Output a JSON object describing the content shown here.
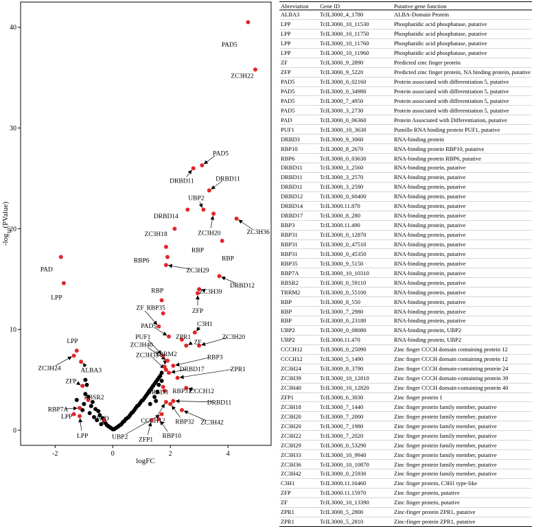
{
  "chart_data": {
    "type": "scatter",
    "title": "",
    "xlabel": "logFC",
    "ylabel": "-log10(PValue)",
    "xlim": [
      -3.2,
      5.5
    ],
    "ylim": [
      -1.5,
      42.5
    ],
    "xticks": [
      -2,
      0,
      2,
      4
    ],
    "yticks": [
      0,
      10,
      20,
      30,
      40
    ],
    "colors": {
      "significant": "#e3262a",
      "nonsignificant": "#000000"
    },
    "significant": [
      {
        "x": 4.7,
        "y": 40.5,
        "label": "PAD5",
        "lx": 4.05,
        "ly": 38.3,
        "arrow": false
      },
      {
        "x": 4.95,
        "y": 35.8,
        "label": "ZC3H22",
        "lx": 4.5,
        "ly": 35.2,
        "arrow": false
      },
      {
        "x": 3.1,
        "y": 26.3,
        "label": "PAD5",
        "lx": 3.75,
        "ly": 27.5,
        "arrow": true
      },
      {
        "x": 2.8,
        "y": 26.0,
        "label": "DRBD11",
        "lx": 2.4,
        "ly": 24.8,
        "arrow": true
      },
      {
        "x": 3.35,
        "y": 23.8,
        "label": "DRBD11",
        "lx": 4.0,
        "ly": 25.0,
        "arrow": true
      },
      {
        "x": 3.15,
        "y": 21.9,
        "label": "UBP2",
        "lx": 2.9,
        "ly": 23.1,
        "arrow": true
      },
      {
        "x": 2.6,
        "y": 21.9,
        "label": "DRBD14",
        "lx": 1.85,
        "ly": 21.3,
        "arrow": false
      },
      {
        "x": 3.5,
        "y": 21.5,
        "label": "ZC3H20",
        "lx": 3.35,
        "ly": 19.6,
        "arrow": true
      },
      {
        "x": 4.3,
        "y": 21.0,
        "label": "ZC3H36",
        "lx": 5.05,
        "ly": 19.7,
        "arrow": true
      },
      {
        "x": 2.15,
        "y": 20.0,
        "label": "ZC3H18",
        "lx": 1.5,
        "ly": 19.5,
        "arrow": false
      },
      {
        "x": 1.85,
        "y": 18.2,
        "label": "RBP",
        "lx": 2.95,
        "ly": 17.9,
        "arrow": false
      },
      {
        "x": 3.8,
        "y": 18.8,
        "label": "RBP",
        "lx": 4.0,
        "ly": 17.1,
        "arrow": false
      },
      {
        "x": 1.9,
        "y": 17.2,
        "label": "RBP6",
        "lx": 1.0,
        "ly": 16.9,
        "arrow": false
      },
      {
        "x": 1.85,
        "y": 16.4,
        "label": "ZC3H29",
        "lx": 2.95,
        "ly": 15.9,
        "arrow": true
      },
      {
        "x": 3.7,
        "y": 15.3,
        "label": "DRBD12",
        "lx": 4.5,
        "ly": 14.4,
        "arrow": true
      },
      {
        "x": 3.0,
        "y": 14.0,
        "label": "ZC3H39",
        "lx": 3.4,
        "ly": 13.8,
        "arrow": true
      },
      {
        "x": 2.95,
        "y": 13.6,
        "label": "ZFP",
        "lx": 2.95,
        "ly": 11.9,
        "arrow": true
      },
      {
        "x": 1.7,
        "y": 12.9,
        "label": "RBP",
        "lx": 1.55,
        "ly": 13.9,
        "arrow": false
      },
      {
        "x": 1.75,
        "y": 11.6,
        "label": "RBP35",
        "lx": 1.5,
        "ly": 12.2,
        "arrow": true
      },
      {
        "x": 1.6,
        "y": 10.3,
        "label": "ZF",
        "lx": 0.95,
        "ly": 12.2,
        "arrow": true
      },
      {
        "x": 1.95,
        "y": 9.3,
        "label": "PAD5",
        "lx": 1.25,
        "ly": 10.4,
        "arrow": true
      },
      {
        "x": 2.4,
        "y": 9.0,
        "label": "ZPR1",
        "lx": 2.45,
        "ly": 9.3,
        "arrow": true
      },
      {
        "x": 2.85,
        "y": 9.7,
        "label": "C3H1",
        "lx": 3.2,
        "ly": 10.6,
        "arrow": true
      },
      {
        "x": 2.55,
        "y": 8.4,
        "label": "ZF",
        "lx": 2.95,
        "ly": 8.8,
        "arrow": true
      },
      {
        "x": 3.0,
        "y": 8.4,
        "label": "ZC3H20",
        "lx": 4.2,
        "ly": 9.3,
        "arrow": true
      },
      {
        "x": 1.75,
        "y": 7.4,
        "label": "PUF1",
        "lx": 1.05,
        "ly": 9.3,
        "arrow": true
      },
      {
        "x": 1.9,
        "y": 6.9,
        "label": "ZC3H40",
        "lx": 1.0,
        "ly": 8.5,
        "arrow": true
      },
      {
        "x": 1.85,
        "y": 6.0,
        "label": "ZC3H33",
        "lx": 1.2,
        "ly": 7.5,
        "arrow": true
      },
      {
        "x": 1.8,
        "y": 6.3,
        "label": "TRRM2",
        "lx": 1.85,
        "ly": 7.6,
        "arrow": true
      },
      {
        "x": 2.1,
        "y": 6.4,
        "label": "RBP3",
        "lx": 3.55,
        "ly": 7.3,
        "arrow": true
      },
      {
        "x": 1.95,
        "y": 5.7,
        "label": "DRBD17",
        "lx": 2.75,
        "ly": 6.1,
        "arrow": true
      },
      {
        "x": 2.25,
        "y": 5.2,
        "label": "ZPR1",
        "lx": 4.35,
        "ly": 6.1,
        "arrow": true
      },
      {
        "x": 2.55,
        "y": 4.2,
        "label": "CCCH12",
        "lx": 3.1,
        "ly": 3.9,
        "arrow": true
      },
      {
        "x": 1.75,
        "y": 4.3,
        "label": "RBP31",
        "lx": 2.4,
        "ly": 3.9,
        "arrow": false
      },
      {
        "x": 1.8,
        "y": 3.9,
        "label": "DRBD3",
        "lx": 1.55,
        "ly": 3.8,
        "arrow": false
      },
      {
        "x": 1.85,
        "y": 2.8,
        "label": "CCCH12",
        "lx": 1.4,
        "ly": 1.0,
        "arrow": true
      },
      {
        "x": 2.1,
        "y": 2.9,
        "label": "DRBD11",
        "lx": 3.7,
        "ly": 2.8,
        "arrow": true
      },
      {
        "x": 2.0,
        "y": 2.6,
        "label": "RBP32",
        "lx": 2.5,
        "ly": 0.9,
        "arrow": true
      },
      {
        "x": 2.4,
        "y": 2.0,
        "label": "ZC3H42",
        "lx": 3.45,
        "ly": 0.8,
        "arrow": true
      },
      {
        "x": 1.7,
        "y": 1.6,
        "label": "UBP2",
        "lx": 0.25,
        "ly": -0.6,
        "arrow": true
      },
      {
        "x": 1.35,
        "y": 1.0,
        "label": "ZFP1",
        "lx": 1.15,
        "ly": -0.9,
        "arrow": true
      },
      {
        "x": 1.6,
        "y": 1.1,
        "label": "RBP10",
        "lx": 2.05,
        "ly": -0.5,
        "arrow": true
      },
      {
        "x": -1.8,
        "y": 17.2,
        "label": "PAD",
        "lx": -2.3,
        "ly": 16.0,
        "arrow": false
      },
      {
        "x": -1.7,
        "y": 14.6,
        "label": "LPP",
        "lx": -1.95,
        "ly": 13.2,
        "arrow": false
      },
      {
        "x": -1.25,
        "y": 7.9,
        "label": "LPP",
        "lx": -1.4,
        "ly": 8.9,
        "arrow": false
      },
      {
        "x": -1.35,
        "y": 7.4,
        "label": "ZC3H24",
        "lx": -2.2,
        "ly": 6.2,
        "arrow": true
      },
      {
        "x": -1.1,
        "y": 6.8,
        "label": "ALBA3",
        "lx": -0.75,
        "ly": 6.0,
        "arrow": true
      },
      {
        "x": -1.05,
        "y": 4.4,
        "label": "ZFP",
        "lx": -1.45,
        "ly": 4.9,
        "arrow": true
      },
      {
        "x": -0.85,
        "y": 3.0,
        "label": "RBSR2",
        "lx": -0.65,
        "ly": 3.3,
        "arrow": true
      },
      {
        "x": -1.15,
        "y": 2.2,
        "label": "RBP7A",
        "lx": -1.9,
        "ly": 2.1,
        "arrow": true
      },
      {
        "x": -1.35,
        "y": 1.6,
        "label": "LPP",
        "lx": -1.6,
        "ly": 1.4,
        "arrow": true
      },
      {
        "x": -1.15,
        "y": 1.4,
        "label": "LPP",
        "lx": -1.05,
        "ly": -0.5,
        "arrow": true
      },
      {
        "x": -0.3,
        "y": 1.0,
        "label": "PAD",
        "lx": -0.35,
        "ly": 1.2,
        "arrow": false
      }
    ],
    "nonsignificant": [
      {
        "x": -0.95,
        "y": 5.0
      },
      {
        "x": -0.9,
        "y": 4.5
      },
      {
        "x": -0.95,
        "y": 3.6
      },
      {
        "x": -0.85,
        "y": 3.3
      },
      {
        "x": -1.25,
        "y": 3.0
      },
      {
        "x": -0.7,
        "y": 2.8
      },
      {
        "x": -1.0,
        "y": 2.6
      },
      {
        "x": -0.75,
        "y": 2.4
      },
      {
        "x": -0.6,
        "y": 2.1
      },
      {
        "x": -1.05,
        "y": 2.0
      },
      {
        "x": -0.5,
        "y": 1.9
      },
      {
        "x": -0.8,
        "y": 1.7
      },
      {
        "x": -0.45,
        "y": 1.5
      },
      {
        "x": -0.65,
        "y": 1.3
      },
      {
        "x": -0.35,
        "y": 1.2
      },
      {
        "x": -0.55,
        "y": 1.0
      },
      {
        "x": -0.3,
        "y": 0.9
      },
      {
        "x": -0.25,
        "y": 0.7
      },
      {
        "x": -0.4,
        "y": 0.6
      },
      {
        "x": -0.2,
        "y": 0.5
      },
      {
        "x": -0.15,
        "y": 0.4
      },
      {
        "x": -0.1,
        "y": 0.3
      },
      {
        "x": -0.05,
        "y": 0.2
      },
      {
        "x": 0.0,
        "y": 0.1
      },
      {
        "x": 0.05,
        "y": 0.1
      },
      {
        "x": 0.1,
        "y": 0.2
      },
      {
        "x": 0.15,
        "y": 0.3
      },
      {
        "x": 0.2,
        "y": 0.4
      },
      {
        "x": 0.25,
        "y": 0.5
      },
      {
        "x": 0.3,
        "y": 0.6
      },
      {
        "x": 0.35,
        "y": 0.8
      },
      {
        "x": 0.4,
        "y": 0.9
      },
      {
        "x": 0.45,
        "y": 1.1
      },
      {
        "x": 0.5,
        "y": 1.2
      },
      {
        "x": 0.55,
        "y": 1.3
      },
      {
        "x": 0.6,
        "y": 1.5
      },
      {
        "x": 0.65,
        "y": 1.7
      },
      {
        "x": 0.7,
        "y": 1.8
      },
      {
        "x": 0.75,
        "y": 2.0
      },
      {
        "x": 0.8,
        "y": 2.2
      },
      {
        "x": 0.85,
        "y": 2.4
      },
      {
        "x": 0.9,
        "y": 2.5
      },
      {
        "x": 0.95,
        "y": 2.7
      },
      {
        "x": 1.0,
        "y": 2.9
      },
      {
        "x": 1.05,
        "y": 3.0
      },
      {
        "x": 1.1,
        "y": 3.2
      },
      {
        "x": 1.15,
        "y": 3.4
      },
      {
        "x": 1.2,
        "y": 3.6
      },
      {
        "x": 1.25,
        "y": 3.8
      },
      {
        "x": 1.3,
        "y": 4.0
      },
      {
        "x": 1.35,
        "y": 4.2
      },
      {
        "x": 1.4,
        "y": 4.4
      },
      {
        "x": 1.45,
        "y": 4.6
      },
      {
        "x": 1.5,
        "y": 4.8
      },
      {
        "x": 1.55,
        "y": 5.0
      },
      {
        "x": 1.6,
        "y": 5.2
      },
      {
        "x": 1.65,
        "y": 5.4
      },
      {
        "x": 1.7,
        "y": 5.7
      },
      {
        "x": 1.6,
        "y": 4.5
      },
      {
        "x": 1.7,
        "y": 4.9
      },
      {
        "x": 1.45,
        "y": 3.3
      },
      {
        "x": 1.55,
        "y": 3.8
      },
      {
        "x": 1.3,
        "y": 2.6
      },
      {
        "x": 1.5,
        "y": 2.9
      }
    ]
  },
  "table": {
    "headers": [
      "Abreviation",
      "Gene ID",
      "Putative gene function"
    ],
    "rows": [
      [
        "ALBA3",
        "TcIL3000_4_1780",
        "ALBA-Domain Protein"
      ],
      [
        "LPP",
        "TcIL3000_10_11530",
        "Phosphatidic acid phosphatase, putative"
      ],
      [
        "LPP",
        "TcIL3000_10_11750",
        "Phosphatidic acid phosphatase, putative"
      ],
      [
        "LPP",
        "TcIL3000_10_11760",
        "Phosphatidic acid phosphatase, putative"
      ],
      [
        "LPP",
        "TcIL3000_10_11960",
        "Phosphatidic acid phosphatase, putative"
      ],
      [
        "ZF",
        "TcIL3000_9_2890",
        "Predicted zinc finger protein"
      ],
      [
        "ZFP",
        "TcIL3000_9_5220",
        "Predicted zinc finger protein, NA binding protein, putative"
      ],
      [
        "PAD5",
        "TcIL3000_0_02160",
        "Protein associated with differentiation 5, putative"
      ],
      [
        "PAD5",
        "TcIL3000_0_34980",
        "Protein associated with differentiation 5, putative"
      ],
      [
        "PAD5",
        "TcIL3000_7_4950",
        "Protein associated with differentiation 5, putative"
      ],
      [
        "PAD5",
        "TcIL3000_3_2730",
        "Protein associated with differentiation 5, putative"
      ],
      [
        "PAD",
        "TcIL3000_0_06360",
        "Protein Associated with Differentiation, putative"
      ],
      [
        "PUF1",
        "TcIL3000_10_3630",
        "Pumillo RNA binding protein PUF1, putative"
      ],
      [
        "DRBD3",
        "TcIL3000_9_3060",
        "RNA-binding protein"
      ],
      [
        "RBP10",
        "TcIL3000_8_2670",
        "RNA-binding protein RBP10, putative"
      ],
      [
        "RBP6",
        "TcIL3000_0_03630",
        "RNA-binding protein RBP6, putative"
      ],
      [
        "DRBD11",
        "TcIL3000_3_2560",
        "RNA-binding protein, putative"
      ],
      [
        "DRBD11",
        "TcIL3000_3_2570",
        "RNA-binding protein, putative"
      ],
      [
        "DRBD11",
        "TcIL3000_3_2590",
        "RNA-binding protein, putative"
      ],
      [
        "DRBD12",
        "TcIL3000_0_60400",
        "RNA-binding protein, putative"
      ],
      [
        "DRBD14",
        "TcIL3000.11.870",
        "RNA-binding protein, putative"
      ],
      [
        "DRBD17",
        "TcIL3000_8_280",
        "RNA-binding protein, putative"
      ],
      [
        "RBP3",
        "TcIL3000.11.490",
        "RNA-binding protein, putative"
      ],
      [
        "RBP31",
        "TcIL3000_0_12870",
        "RNA-binding protein, putative"
      ],
      [
        "RBP31",
        "TcIL3000_0_47510",
        "RNA-binding protein, putative"
      ],
      [
        "RBP31",
        "TcIL3000_0_45350",
        "RNA-binding protein, putative"
      ],
      [
        "RBP35",
        "TcIL3000_9_5150",
        "RNA-binding protein, putative"
      ],
      [
        "RBP7A",
        "TcIL3000_10_10310",
        "RNA-binding protein, putative"
      ],
      [
        "RBSR2",
        "TcIL3000_0_59110",
        "RNA-binding protein, putative"
      ],
      [
        "TRRM2",
        "TcIL3000_0_55100",
        "RNA-binding protein, putative"
      ],
      [
        "RBP",
        "TcIL3000_8_550",
        "RNA-binding protein, putative"
      ],
      [
        "RBP",
        "TcIL3000_7_2980",
        "RNA-binding protein, putative"
      ],
      [
        "RBP",
        "TcIL3000_0_23180",
        "RNA-binding protein, putative"
      ],
      [
        "UBP2",
        "TcIL3000_0_08080",
        "RNA-binding protein, UBP2"
      ],
      [
        "UBP2",
        "TcIL3000.11.470",
        "RNA-binding protein, UBP2"
      ],
      [
        "CCCH12",
        "TcIL3000_0_25090",
        "Zinc finger CCCH domain containing protein 12"
      ],
      [
        "CCCH12",
        "TcIL3000_5_1490",
        "Zinc finger CCCH domain containing protein 12"
      ],
      [
        "ZC3H24",
        "TcIL3000_8_3790",
        "Zinc finger CCCH domain-containing protein 24"
      ],
      [
        "ZC3H39",
        "TcIL3000_10_12810",
        "Zinc finger CCCH domain-containing protein 39"
      ],
      [
        "ZC3H40",
        "TcIL3000_10_12820",
        "Zinc finger CCCH domain-containing protein 40"
      ],
      [
        "ZFP1",
        "TcIL3000_6_3030",
        "Zinc finger protein 1"
      ],
      [
        "ZC3H18",
        "TcIL3000_7_1440",
        "Zinc finger protein family member, putative"
      ],
      [
        "ZC3H20",
        "TcIL3000_7_2000",
        "Zinc finger protein family member, putative"
      ],
      [
        "ZC3H20",
        "TcIL3000_7_1980",
        "Zinc finger protein family member, putative"
      ],
      [
        "ZC3H22",
        "TcIL3000_7_2020",
        "Zinc finger protein family member, putative"
      ],
      [
        "ZC3H29",
        "TcIL3000_0_53290",
        "Zinc finger protein family member, putative"
      ],
      [
        "ZC3H33",
        "TcIL3000_10_9940",
        "Zinc finger protein family member, putative"
      ],
      [
        "ZC3H36",
        "TcIL3000_10_10870",
        "Zinc finger protein family member, putative"
      ],
      [
        "ZC3H42",
        "TcIL3000_0_25930",
        "Zinc finger protein family member, putative"
      ],
      [
        "C3H1",
        "TcIL3000.11.16460",
        "Zinc finger protein, C3H1 type-like"
      ],
      [
        "ZFP",
        "TcIL3000.11.15970",
        "Zinc finger protein, putative"
      ],
      [
        "ZF",
        "TcIL3000_10_13390",
        "Zinc finger protein, putative"
      ],
      [
        "ZPR1",
        "TcIL3000_5_2800",
        "Zinc-finger protein ZPR1, putative"
      ],
      [
        "ZPR1",
        "TcIL3000_5_2810",
        "Zinc-finger protein ZPR1, putative"
      ]
    ]
  }
}
